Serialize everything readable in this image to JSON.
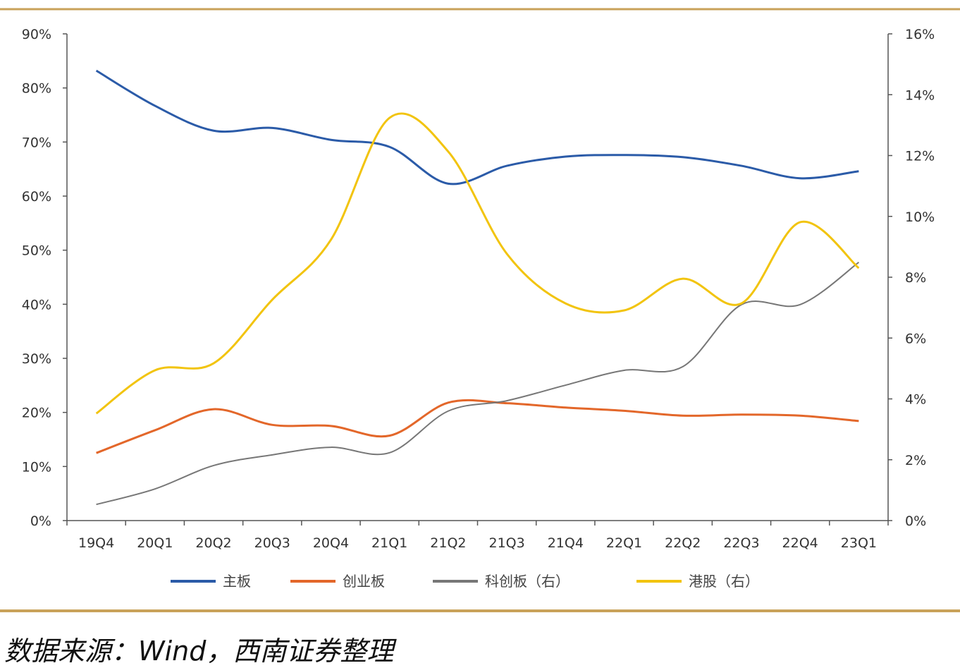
{
  "chart_data": {
    "type": "line",
    "title": "",
    "categories": [
      "19Q4",
      "20Q1",
      "20Q2",
      "20Q3",
      "20Q4",
      "21Q1",
      "21Q2",
      "21Q3",
      "21Q4",
      "22Q1",
      "22Q2",
      "22Q3",
      "22Q4",
      "23Q1"
    ],
    "y_left": {
      "ticks": [
        "0%",
        "10%",
        "20%",
        "30%",
        "40%",
        "50%",
        "60%",
        "70%",
        "80%",
        "90%"
      ],
      "ylim": [
        0,
        90
      ]
    },
    "y_right": {
      "ticks": [
        "0%",
        "2%",
        "4%",
        "6%",
        "8%",
        "10%",
        "12%",
        "14%",
        "16%"
      ],
      "ylim": [
        0,
        16
      ]
    },
    "grid": false,
    "legend_position": "bottom",
    "series": [
      {
        "name": "主板",
        "axis": "left",
        "color": "#2b5ba8",
        "values": [
          83.2,
          76.7,
          72.1,
          72.6,
          70.4,
          69.1,
          62.3,
          65.6,
          67.3,
          67.6,
          67.2,
          65.6,
          63.3,
          64.6
        ]
      },
      {
        "name": "创业板",
        "axis": "left",
        "color": "#e3672a",
        "values": [
          12.5,
          16.7,
          20.6,
          17.7,
          17.5,
          15.7,
          21.8,
          21.7,
          20.9,
          20.3,
          19.4,
          19.6,
          19.4,
          18.4
        ]
      },
      {
        "name": "科创板（右）",
        "axis": "right",
        "color": "#777777",
        "values": [
          0.53,
          1.04,
          1.81,
          2.16,
          2.41,
          2.23,
          3.6,
          3.94,
          4.45,
          4.94,
          5.06,
          7.1,
          7.1,
          8.49
        ]
      },
      {
        "name": "港股（右）",
        "axis": "right",
        "color": "#f2c40f",
        "values": [
          3.52,
          4.94,
          5.17,
          7.26,
          9.23,
          13.24,
          12.13,
          8.77,
          7.14,
          6.91,
          7.95,
          7.14,
          9.81,
          8.3
        ]
      }
    ]
  },
  "source": "数据来源：Wind，西南证券整理",
  "colors": {
    "frame": "#c9a25a"
  }
}
